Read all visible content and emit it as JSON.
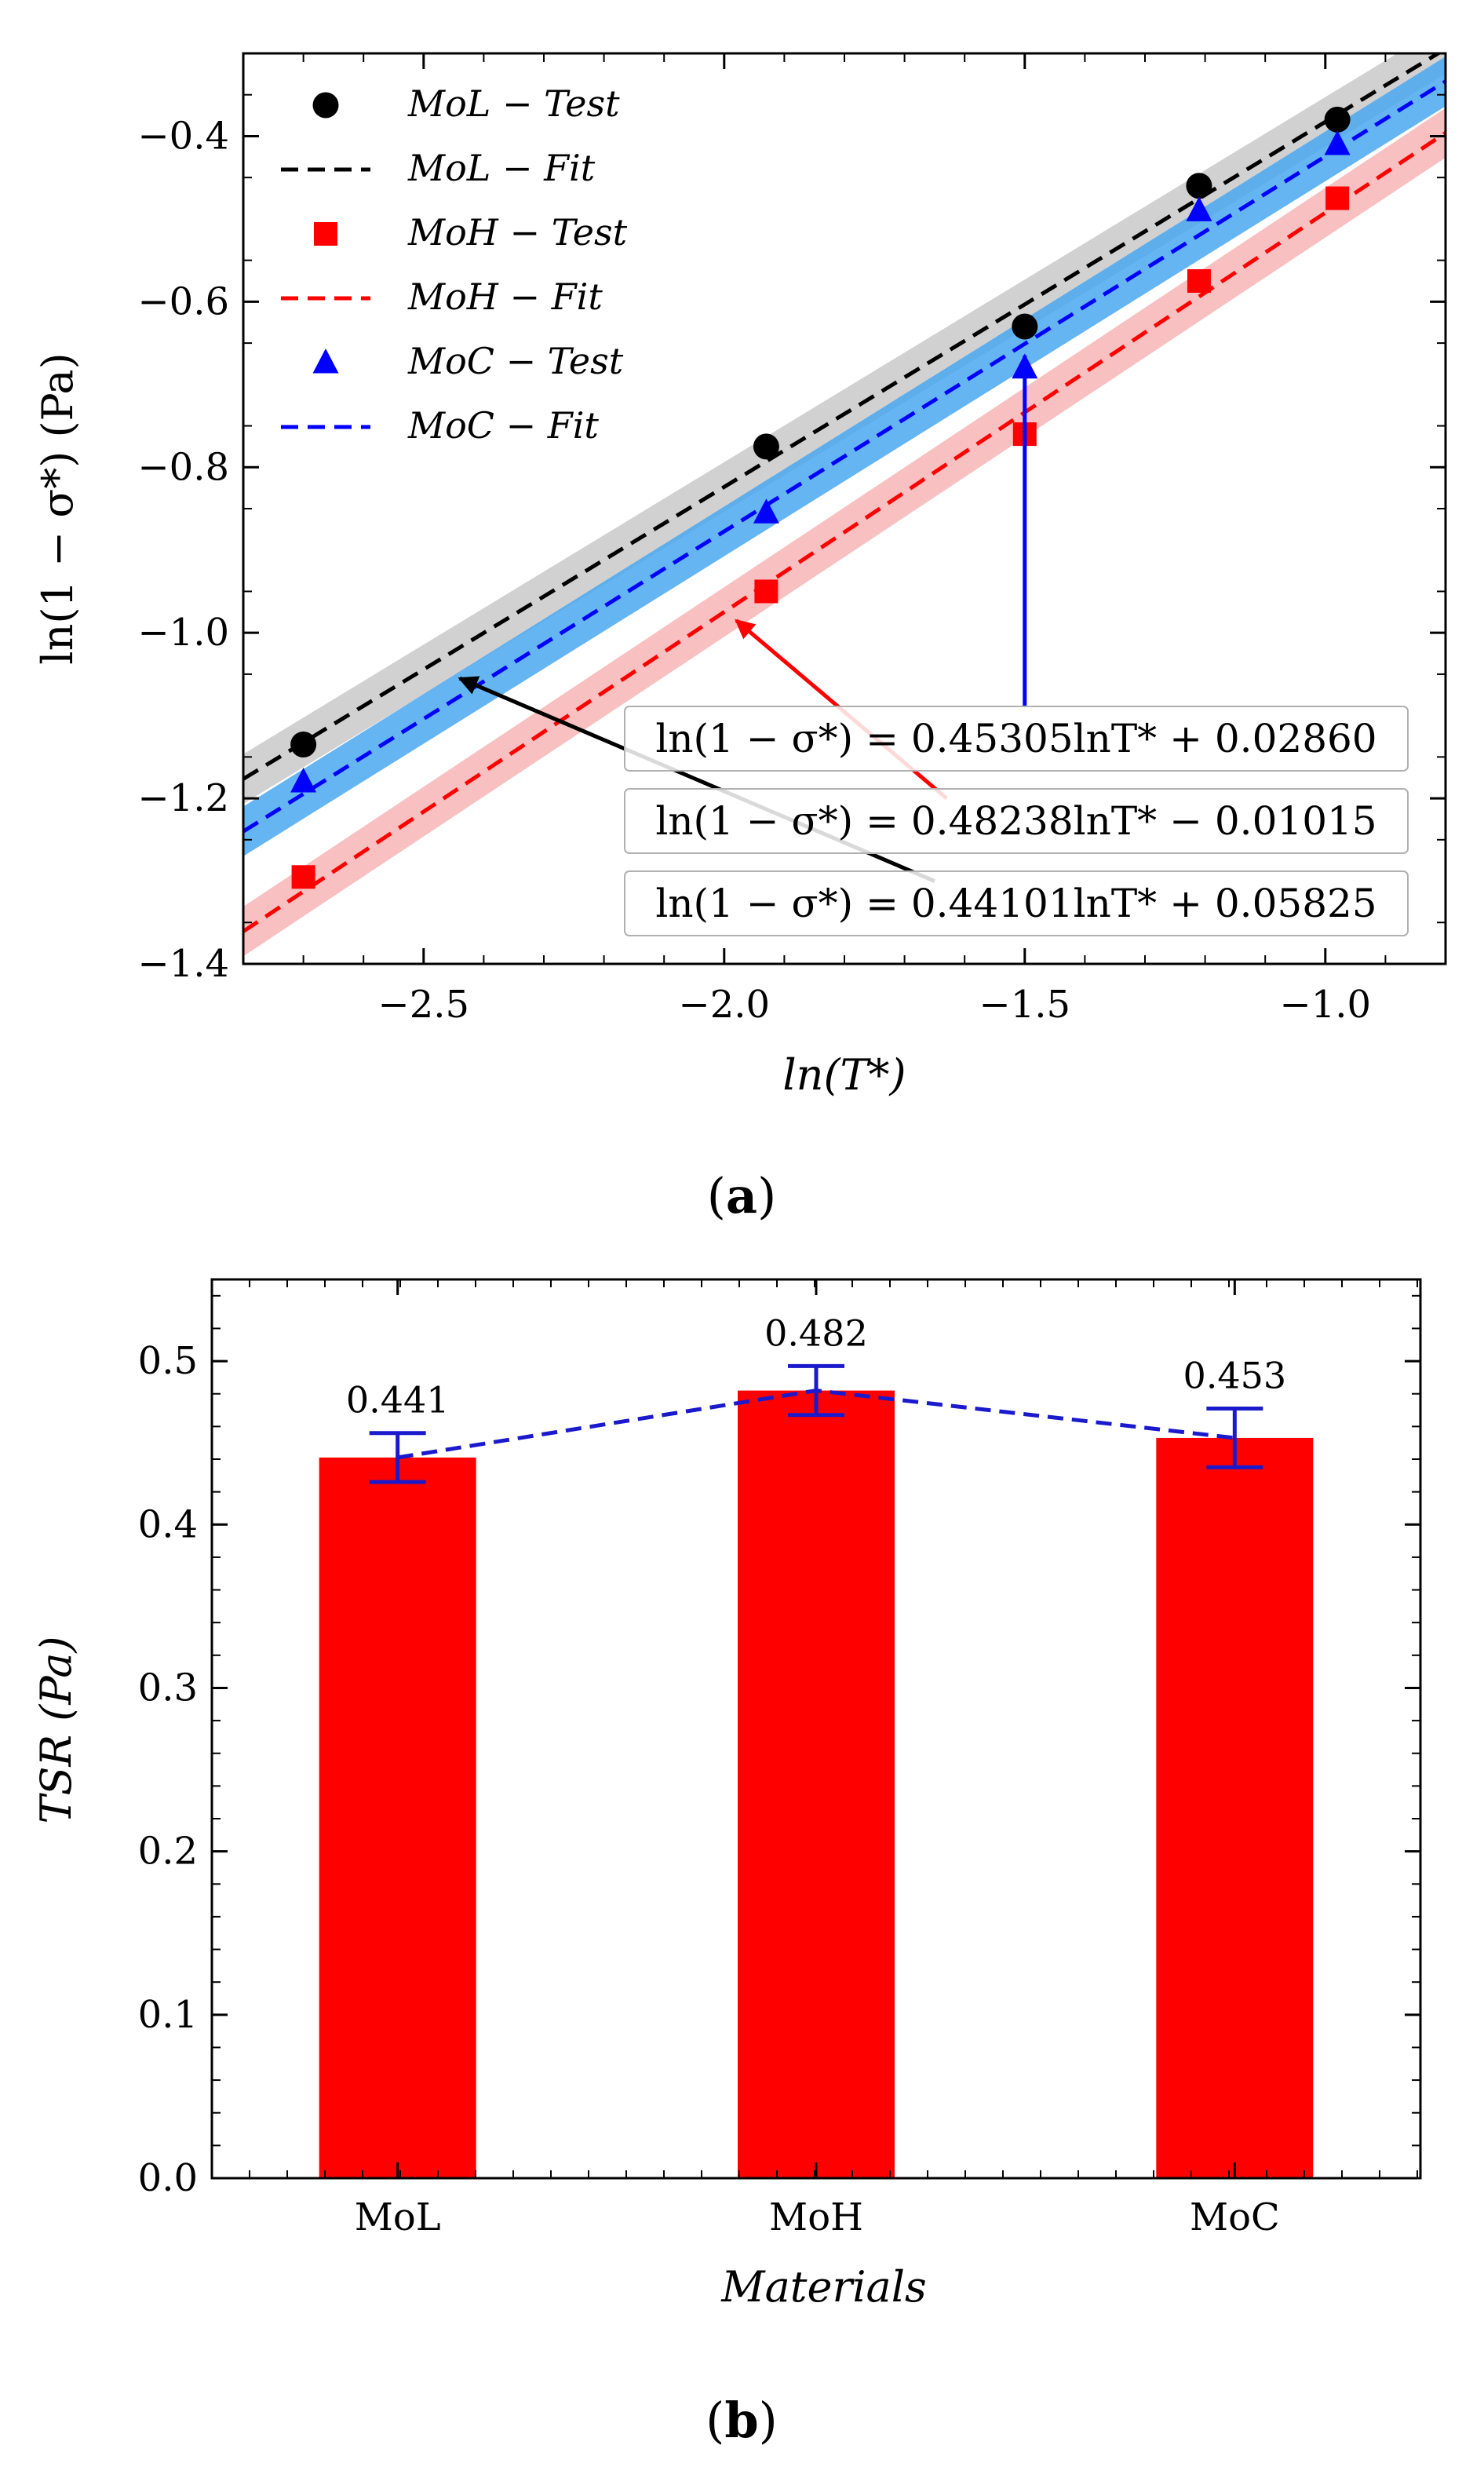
{
  "chart_data": [
    {
      "type": "scatter",
      "panel_caption": "a",
      "title": "",
      "xlabel": "ln(T*)",
      "ylabel": "ln(1 − σ*) (Pa)",
      "xlim": [
        -2.8,
        -0.8
      ],
      "ylim": [
        -1.4,
        -0.3
      ],
      "xticks": [
        -2.5,
        -2.0,
        -1.5,
        -1.0
      ],
      "yticks": [
        -0.4,
        -0.6,
        -0.8,
        -1.0,
        -1.2,
        -1.4
      ],
      "xtick_labels": [
        "−2.5",
        "−2.0",
        "−1.5",
        "−1.0"
      ],
      "ytick_labels": [
        "−0.4",
        "−0.6",
        "−0.8",
        "−1.0",
        "−1.2",
        "−1.4"
      ],
      "legend_position": "top-left",
      "series": [
        {
          "name": "MoL",
          "test_label": "MoL − Test",
          "fit_label": "MoL − Fit",
          "color": "#000000",
          "band_color": "#bdbdbd",
          "marker": "circle",
          "x": [
            -2.7,
            -1.93,
            -1.5,
            -1.21,
            -0.98
          ],
          "y": [
            -1.135,
            -0.775,
            -0.63,
            -0.46,
            -0.38
          ],
          "fit": {
            "slope": 0.44101,
            "intercept": 0.05825
          },
          "equation": "ln(1 − σ*) = 0.44101lnT* + 0.05825"
        },
        {
          "name": "MoH",
          "test_label": "MoH − Test",
          "fit_label": "MoH − Fit",
          "color": "#ff0000",
          "band_color": "#f5a5a5",
          "marker": "square",
          "x": [
            -2.7,
            -1.93,
            -1.5,
            -1.21,
            -0.98
          ],
          "y": [
            -1.295,
            -0.95,
            -0.76,
            -0.575,
            -0.475
          ],
          "fit": {
            "slope": 0.48238,
            "intercept": -0.01015
          },
          "equation": "ln(1 − σ*) = 0.48238lnT* − 0.01015"
        },
        {
          "name": "MoC",
          "test_label": "MoC − Test",
          "fit_label": "MoC − Fit",
          "color": "#0000ff",
          "band_color": "#4aa8f0",
          "marker": "triangle",
          "x": [
            -2.7,
            -1.93,
            -1.5,
            -1.21,
            -0.98
          ],
          "y": [
            -1.18,
            -0.855,
            -0.68,
            -0.49,
            -0.41
          ],
          "fit": {
            "slope": 0.45305,
            "intercept": 0.0286
          },
          "equation": "ln(1 − σ*) = 0.45305lnT* + 0.02860"
        }
      ]
    },
    {
      "type": "bar",
      "panel_caption": "b",
      "title": "",
      "xlabel": "Materials",
      "ylabel": "TSR (Pa)",
      "ylim": [
        0.0,
        0.55
      ],
      "yticks": [
        0.0,
        0.1,
        0.2,
        0.3,
        0.4,
        0.5
      ],
      "ytick_labels": [
        "0.0",
        "0.1",
        "0.2",
        "0.3",
        "0.4",
        "0.5"
      ],
      "categories": [
        "MoL",
        "MoH",
        "MoC"
      ],
      "values": [
        0.441,
        0.482,
        0.453
      ],
      "value_labels": [
        "0.441",
        "0.482",
        "0.453"
      ],
      "error": [
        0.015,
        0.015,
        0.018
      ],
      "bar_color": "#ff0000",
      "line_color": "#1a1acc"
    }
  ]
}
